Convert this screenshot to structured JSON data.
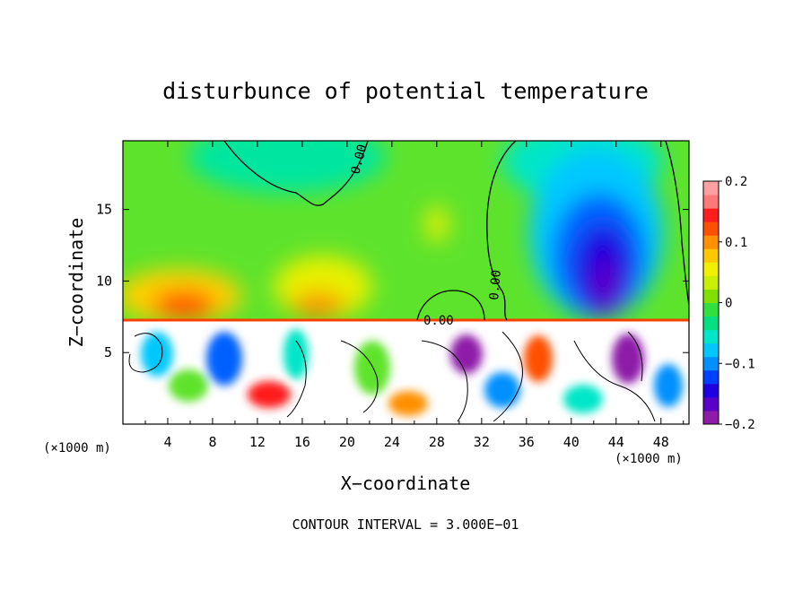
{
  "chart_data": {
    "type": "heatmap",
    "title": "disturbunce of potential temperature",
    "xlabel": "X−coordinate",
    "ylabel": "Z−coordinate",
    "x_unit_left": "(×1000 m)",
    "x_unit_right": "(×1000 m)",
    "x_ticks": [
      "4",
      "8",
      "12",
      "16",
      "20",
      "24",
      "28",
      "32",
      "36",
      "40",
      "44",
      "48"
    ],
    "y_ticks": [
      "5",
      "10",
      "15"
    ],
    "xlim": [
      0,
      50.5
    ],
    "ylim": [
      0,
      19.8
    ],
    "colorbar": {
      "ticks": [
        "0.2",
        "0.1",
        "0",
        "−0.1",
        "−0.2"
      ],
      "range": [
        -0.2,
        0.2
      ],
      "colors": [
        "#8e1ba8",
        "#5a00c8",
        "#1e00e0",
        "#0040ff",
        "#0090ff",
        "#00c8ff",
        "#00e6c8",
        "#00e080",
        "#30e040",
        "#80e000",
        "#c8f000",
        "#f0f000",
        "#ffc800",
        "#ff9000",
        "#ff5000",
        "#ff1e1e",
        "#ff7878",
        "#ffa0a0"
      ]
    },
    "contour_labels": [
      "0.00",
      "0.00",
      "0.00"
    ],
    "contour_interval_text": "CONTOUR INTERVAL = 3.000E−01",
    "field_regions": [
      {
        "name": "cold-core",
        "x": [
          39,
          46
        ],
        "z": [
          9,
          16
        ],
        "value": -0.2
      },
      {
        "name": "cold-outer",
        "x": [
          36,
          49
        ],
        "z": [
          8,
          19.8
        ],
        "value": -0.1
      },
      {
        "name": "warm-left",
        "x": [
          2,
          10
        ],
        "z": [
          7.4,
          10
        ],
        "value": 0.12
      },
      {
        "name": "warm-mid",
        "x": [
          16,
          24
        ],
        "z": [
          7.4,
          12
        ],
        "value": 0.06
      },
      {
        "name": "cool-top",
        "x": [
          10,
          26
        ],
        "z": [
          15,
          19.8
        ],
        "value": -0.04
      }
    ],
    "lower_layer_top_z": 7.4
  }
}
